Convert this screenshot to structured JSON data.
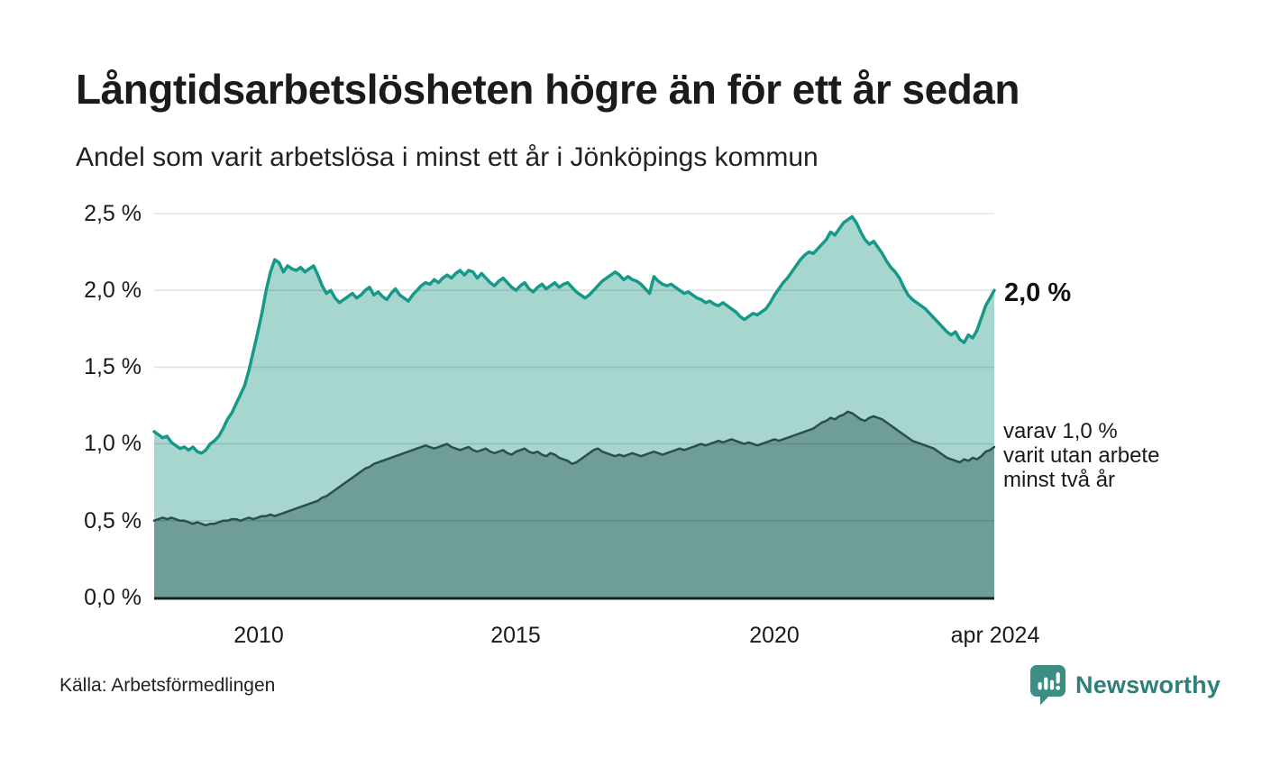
{
  "header": {
    "title": "Långtidsarbetslösheten högre än för ett år sedan",
    "subtitle": "Andel som varit arbetslösa i minst ett år i Jönköpings kommun"
  },
  "footer": {
    "source": "Källa: Arbetsförmedlingen",
    "brand": "Newsworthy",
    "brand_color": "#2f8078",
    "logo_icon": "bar-chart-speech-bubble-icon"
  },
  "annotations": {
    "end_value_label": "2,0 %",
    "inner_label_lines": [
      "varav 1,0 %",
      "varit utan arbete",
      "minst två år"
    ]
  },
  "chart_data": {
    "type": "area",
    "title": "Långtidsarbetslösheten högre än för ett år sedan",
    "subtitle": "Andel som varit arbetslösa i minst ett år i Jönköpings kommun",
    "interval": "monthly",
    "x_start": "2008-01",
    "x_end": "2024-04",
    "ylim": [
      0,
      2.5
    ],
    "grid": "horizontal",
    "grid_color": "rgba(0,0,0,0.11)",
    "axis_baseline_color": "#16211f",
    "y_ticks": [
      {
        "label": "2,5 %",
        "value": 2.5
      },
      {
        "label": "2,0 %",
        "value": 2.0
      },
      {
        "label": "1,5 %",
        "value": 1.5
      },
      {
        "label": "1,0 %",
        "value": 1.0
      },
      {
        "label": "0,5 %",
        "value": 0.5
      },
      {
        "label": "0,0 %",
        "value": 0.0
      }
    ],
    "x_ticks": [
      {
        "label": "2010",
        "value": 2010
      },
      {
        "label": "2015",
        "value": 2015
      },
      {
        "label": "2020",
        "value": 2020
      },
      {
        "label": "apr 2024",
        "value": 2024.25
      }
    ],
    "series": [
      {
        "name": "Andel arbetslösa minst ett år",
        "line_color": "#17998a",
        "fill_color": "#a7d6cf",
        "line_width": 3.5,
        "end_value": 2.0,
        "values": [
          1.08,
          1.06,
          1.04,
          1.05,
          1.01,
          0.99,
          0.97,
          0.98,
          0.96,
          0.98,
          0.95,
          0.94,
          0.96,
          1.0,
          1.02,
          1.05,
          1.1,
          1.16,
          1.2,
          1.26,
          1.32,
          1.38,
          1.48,
          1.6,
          1.72,
          1.85,
          2.0,
          2.12,
          2.2,
          2.18,
          2.12,
          2.16,
          2.14,
          2.13,
          2.15,
          2.12,
          2.14,
          2.16,
          2.1,
          2.03,
          1.98,
          2.0,
          1.95,
          1.92,
          1.94,
          1.96,
          1.98,
          1.95,
          1.97,
          2.0,
          2.02,
          1.97,
          1.99,
          1.96,
          1.94,
          1.98,
          2.01,
          1.97,
          1.95,
          1.93,
          1.97,
          2.0,
          2.03,
          2.05,
          2.04,
          2.07,
          2.05,
          2.08,
          2.1,
          2.08,
          2.11,
          2.13,
          2.1,
          2.13,
          2.12,
          2.08,
          2.11,
          2.08,
          2.05,
          2.03,
          2.06,
          2.08,
          2.05,
          2.02,
          2.0,
          2.03,
          2.05,
          2.01,
          1.99,
          2.02,
          2.04,
          2.01,
          2.03,
          2.05,
          2.02,
          2.04,
          2.05,
          2.02,
          1.99,
          1.97,
          1.95,
          1.97,
          2.0,
          2.03,
          2.06,
          2.08,
          2.1,
          2.12,
          2.1,
          2.07,
          2.09,
          2.07,
          2.06,
          2.04,
          2.01,
          1.98,
          2.09,
          2.06,
          2.04,
          2.03,
          2.04,
          2.02,
          2.0,
          1.98,
          1.99,
          1.97,
          1.95,
          1.94,
          1.92,
          1.93,
          1.91,
          1.9,
          1.92,
          1.9,
          1.88,
          1.86,
          1.83,
          1.81,
          1.83,
          1.85,
          1.84,
          1.86,
          1.88,
          1.92,
          1.97,
          2.01,
          2.05,
          2.08,
          2.12,
          2.16,
          2.2,
          2.23,
          2.25,
          2.24,
          2.27,
          2.3,
          2.33,
          2.38,
          2.36,
          2.4,
          2.44,
          2.46,
          2.48,
          2.44,
          2.38,
          2.33,
          2.3,
          2.32,
          2.28,
          2.24,
          2.19,
          2.15,
          2.12,
          2.08,
          2.02,
          1.97,
          1.94,
          1.92,
          1.9,
          1.88,
          1.85,
          1.82,
          1.79,
          1.76,
          1.73,
          1.71,
          1.73,
          1.68,
          1.66,
          1.71,
          1.69,
          1.74,
          1.82,
          1.9,
          1.95,
          2.0
        ]
      },
      {
        "name": "varav utan arbete minst två år",
        "line_color": "#2b4f49",
        "fill_color": "#6f9e98",
        "line_width": 2.5,
        "end_value": 1.0,
        "values": [
          0.5,
          0.51,
          0.52,
          0.51,
          0.52,
          0.51,
          0.5,
          0.5,
          0.49,
          0.48,
          0.49,
          0.48,
          0.47,
          0.48,
          0.48,
          0.49,
          0.5,
          0.5,
          0.51,
          0.51,
          0.5,
          0.51,
          0.52,
          0.51,
          0.52,
          0.53,
          0.53,
          0.54,
          0.53,
          0.54,
          0.55,
          0.56,
          0.57,
          0.58,
          0.59,
          0.6,
          0.61,
          0.62,
          0.63,
          0.65,
          0.66,
          0.68,
          0.7,
          0.72,
          0.74,
          0.76,
          0.78,
          0.8,
          0.82,
          0.84,
          0.85,
          0.87,
          0.88,
          0.89,
          0.9,
          0.91,
          0.92,
          0.93,
          0.94,
          0.95,
          0.96,
          0.97,
          0.98,
          0.99,
          0.98,
          0.97,
          0.98,
          0.99,
          1.0,
          0.98,
          0.97,
          0.96,
          0.97,
          0.98,
          0.96,
          0.95,
          0.96,
          0.97,
          0.95,
          0.94,
          0.95,
          0.96,
          0.94,
          0.93,
          0.95,
          0.96,
          0.97,
          0.95,
          0.94,
          0.95,
          0.93,
          0.92,
          0.94,
          0.93,
          0.91,
          0.9,
          0.89,
          0.87,
          0.88,
          0.9,
          0.92,
          0.94,
          0.96,
          0.97,
          0.95,
          0.94,
          0.93,
          0.92,
          0.93,
          0.92,
          0.93,
          0.94,
          0.93,
          0.92,
          0.93,
          0.94,
          0.95,
          0.94,
          0.93,
          0.94,
          0.95,
          0.96,
          0.97,
          0.96,
          0.97,
          0.98,
          0.99,
          1.0,
          0.99,
          1.0,
          1.01,
          1.02,
          1.01,
          1.02,
          1.03,
          1.02,
          1.01,
          1.0,
          1.01,
          1.0,
          0.99,
          1.0,
          1.01,
          1.02,
          1.03,
          1.02,
          1.03,
          1.04,
          1.05,
          1.06,
          1.07,
          1.08,
          1.09,
          1.1,
          1.12,
          1.14,
          1.15,
          1.17,
          1.16,
          1.18,
          1.19,
          1.21,
          1.2,
          1.18,
          1.16,
          1.15,
          1.17,
          1.18,
          1.17,
          1.16,
          1.14,
          1.12,
          1.1,
          1.08,
          1.06,
          1.04,
          1.02,
          1.01,
          1.0,
          0.99,
          0.98,
          0.97,
          0.95,
          0.93,
          0.91,
          0.9,
          0.89,
          0.88,
          0.9,
          0.89,
          0.91,
          0.9,
          0.92,
          0.95,
          0.96,
          0.98
        ]
      }
    ]
  }
}
